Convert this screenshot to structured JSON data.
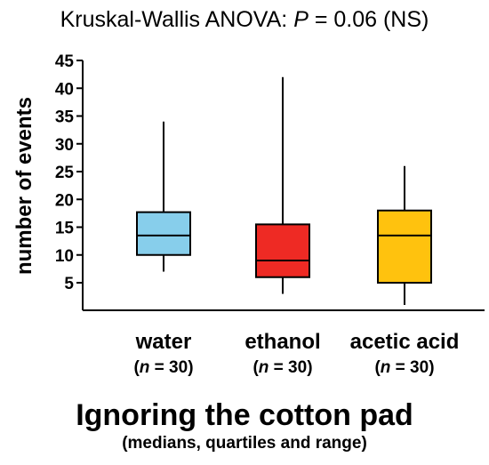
{
  "chart_data": {
    "type": "box",
    "title_prefix": "Kruskal-Wallis ANOVA: ",
    "title_p_symbol": "P",
    "title_suffix": " = 0.06 (NS)",
    "ylabel": "number of events",
    "xlabel": "Ignoring the cotton pad",
    "subtitle": "(medians, quartiles and range)",
    "yticks": [
      5,
      10,
      15,
      20,
      25,
      30,
      35,
      40,
      45
    ],
    "ylim": [
      0,
      45
    ],
    "grid": false,
    "series": [
      {
        "category": "water",
        "n_prefix": "(",
        "n_symbol": "n",
        "n_suffix": " = 30)",
        "min": 7,
        "q1": 10,
        "median": 13.5,
        "q3": 17.7,
        "max": 34,
        "color": "#87CEEB"
      },
      {
        "category": "ethanol",
        "n_prefix": "(",
        "n_symbol": "n",
        "n_suffix": " = 30)",
        "min": 3,
        "q1": 6,
        "median": 9,
        "q3": 15.5,
        "max": 42,
        "color": "#EE2A24"
      },
      {
        "category": "acetic acid",
        "n_prefix": "(",
        "n_symbol": "n",
        "n_suffix": " = 30)",
        "min": 1,
        "q1": 5,
        "median": 13.5,
        "q3": 18,
        "max": 26,
        "color": "#FFC20E"
      }
    ]
  }
}
